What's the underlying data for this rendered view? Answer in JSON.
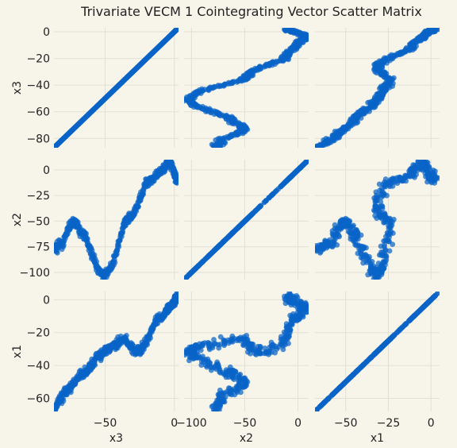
{
  "chart_data": {
    "type": "scatter",
    "title": "Trivariate VECM 1 Cointegrating Vector Scatter Matrix",
    "variables": [
      "x3",
      "x2",
      "x1"
    ],
    "ranges": {
      "x3": [
        -87,
        3
      ],
      "x2": [
        -107,
        10
      ],
      "x1": [
        -68,
        5
      ]
    },
    "ticks": {
      "x3": [
        0,
        -20,
        -40,
        -60,
        -80
      ],
      "x2": [
        0,
        -25,
        -50,
        -75,
        -100
      ],
      "x1": [
        0,
        -20,
        -40,
        -60
      ]
    },
    "bottom_ticks": {
      "x3": [
        -50,
        0
      ],
      "x2": [
        -100,
        -50,
        0
      ],
      "x1": [
        -50,
        -25,
        0
      ]
    },
    "grid": true,
    "marker_color": "#0a64c8",
    "background": "#f7f5ea",
    "path": {
      "x3": [
        -87,
        -84,
        -80,
        -76,
        -72,
        -68,
        -64,
        -60,
        -56,
        -52,
        -48,
        -44,
        -40,
        -36,
        -32,
        -28,
        -24,
        -20,
        -16,
        -12,
        -8,
        -5,
        -2,
        0,
        1,
        2
      ],
      "x2": [
        -77,
        -75,
        -70,
        -55,
        -50,
        -60,
        -65,
        -80,
        -95,
        -103,
        -100,
        -90,
        -70,
        -52,
        -47,
        -40,
        -25,
        -12,
        -8,
        -5,
        2,
        7,
        5,
        -3,
        -8,
        -8
      ],
      "x1": [
        -68,
        -62,
        -58,
        -54,
        -50,
        -46,
        -44,
        -40,
        -35,
        -33,
        -30,
        -28,
        -26,
        -24,
        -28,
        -32,
        -30,
        -25,
        -18,
        -12,
        -10,
        -6,
        -3,
        -1,
        0,
        2
      ]
    }
  }
}
